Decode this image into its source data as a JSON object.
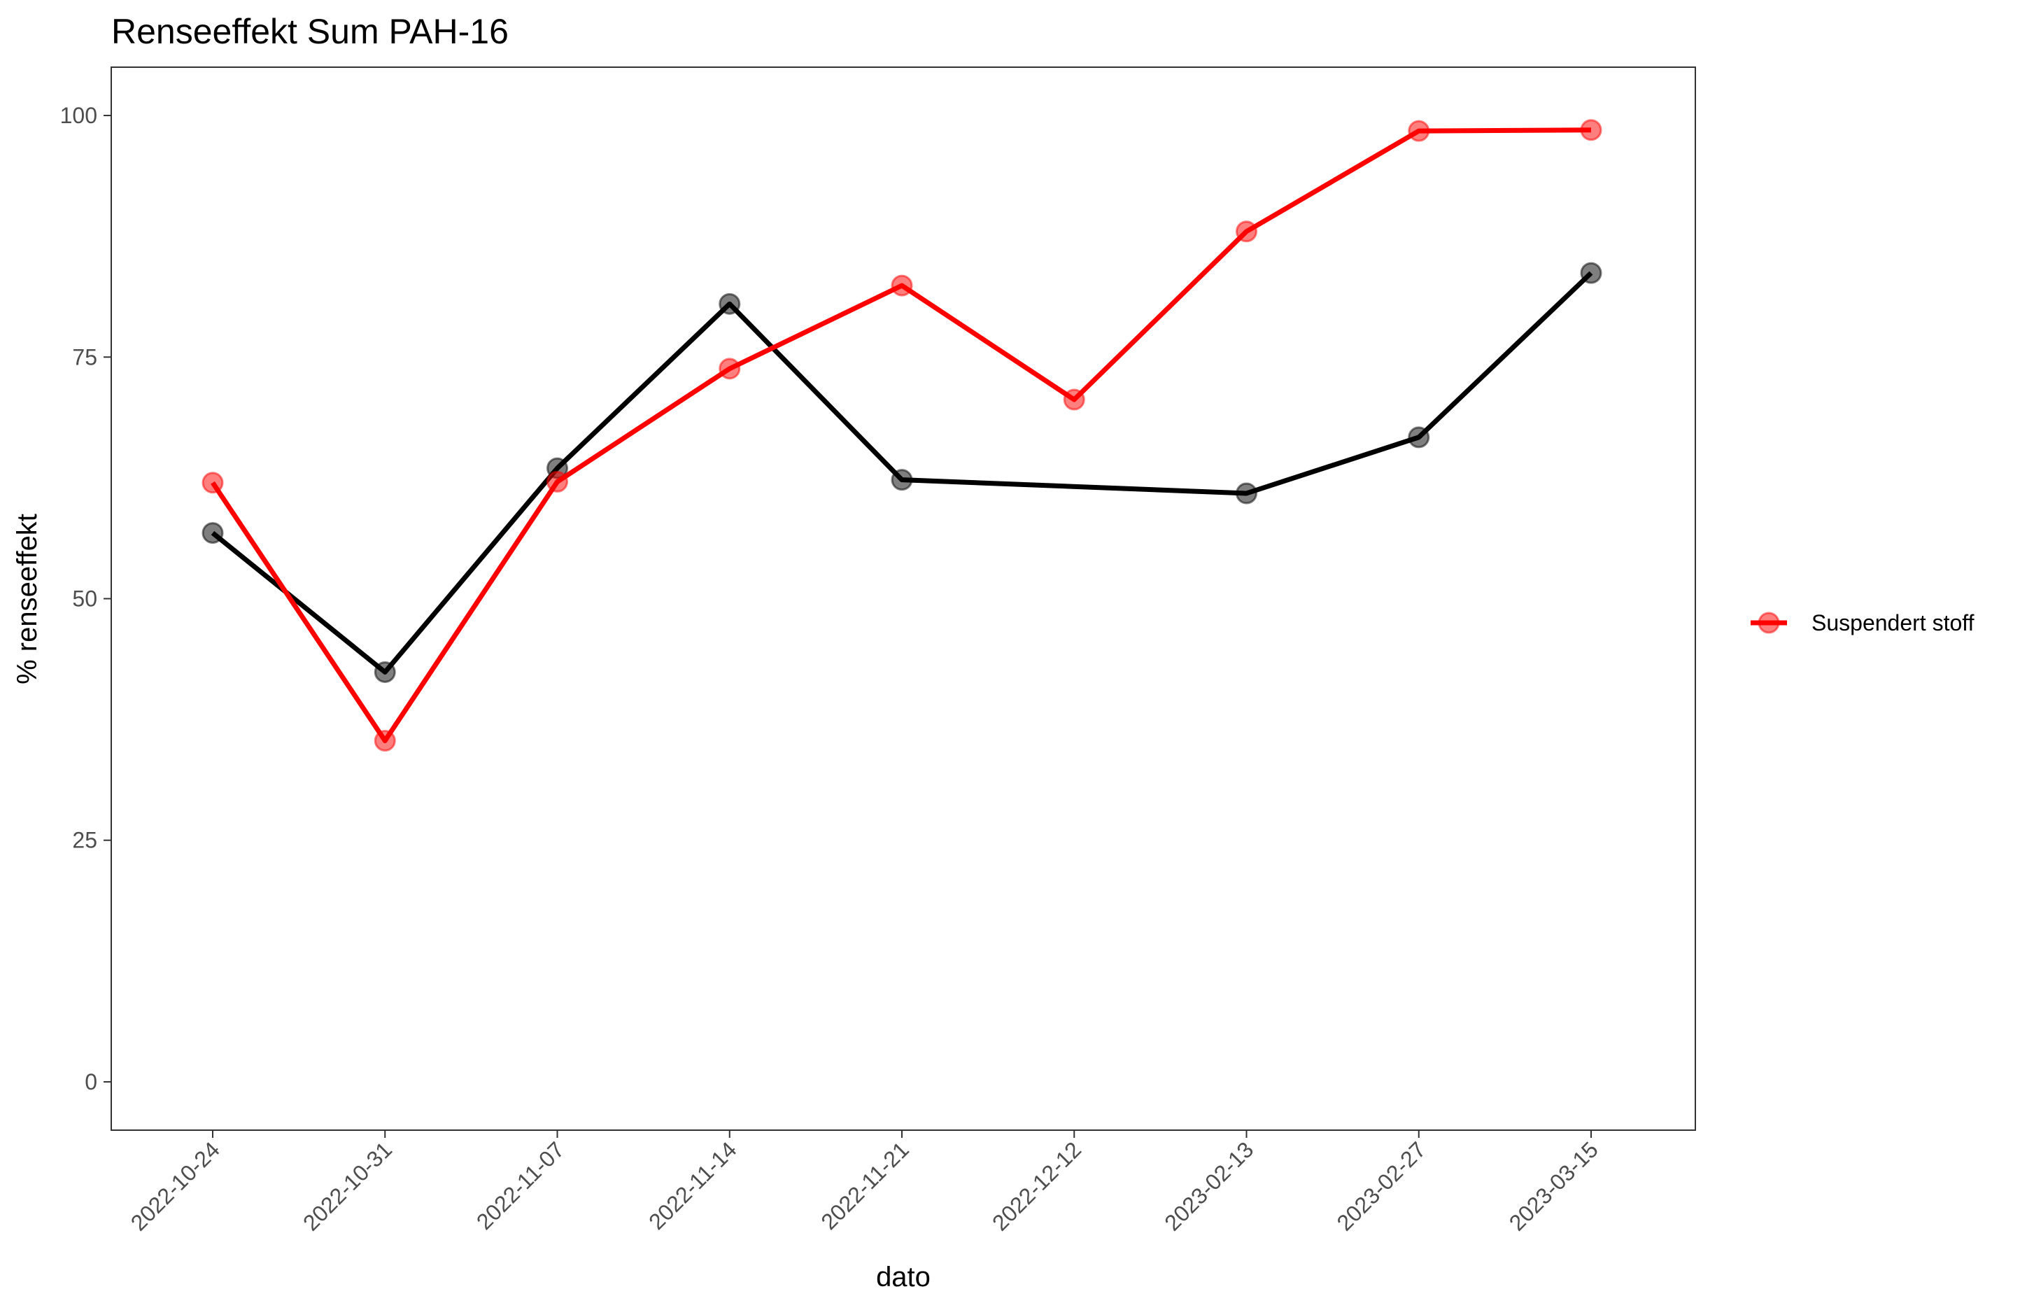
{
  "chart_data": {
    "type": "line",
    "title": "Renseeffekt Sum PAH-16",
    "xlabel": "dato",
    "ylabel": "% renseeffekt",
    "categories": [
      "2022-10-24",
      "2022-10-31",
      "2022-11-07",
      "2022-11-14",
      "2022-11-21",
      "2022-12-12",
      "2023-02-13",
      "2023-02-27",
      "2023-03-15"
    ],
    "ylim": [
      -5,
      105
    ],
    "yticks": [
      0,
      25,
      50,
      75,
      100
    ],
    "grid": false,
    "legend_position": "right",
    "series": [
      {
        "name": "Suspendert stoff",
        "color": "#ff0000",
        "values": [
          62.0,
          35.3,
          62.1,
          73.8,
          82.4,
          70.6,
          88.0,
          98.4,
          98.5
        ]
      },
      {
        "color": "#000000",
        "values": [
          56.8,
          42.4,
          63.5,
          80.5,
          62.3,
          null,
          60.9,
          66.7,
          83.7
        ]
      }
    ]
  }
}
